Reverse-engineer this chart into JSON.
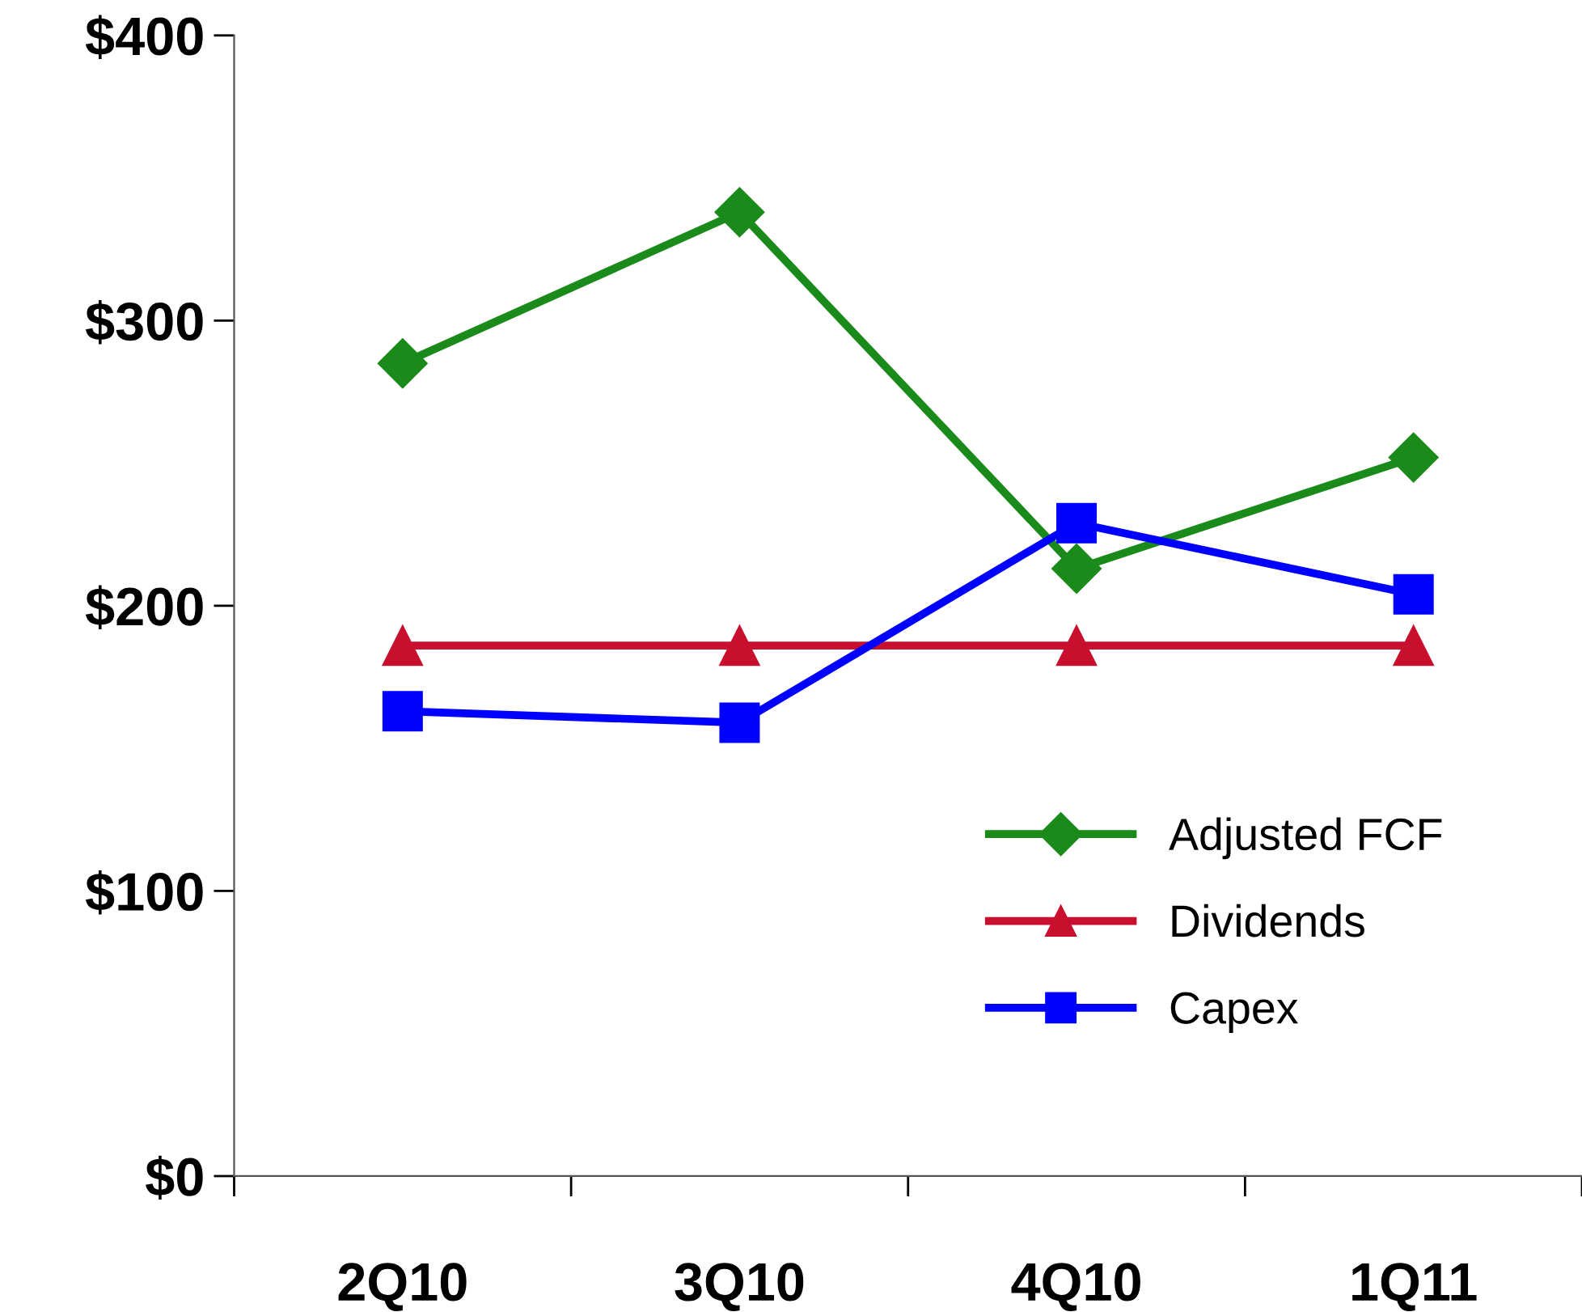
{
  "chart_data": {
    "type": "line",
    "categories": [
      "2Q10",
      "3Q10",
      "4Q10",
      "1Q11"
    ],
    "series": [
      {
        "name": "Adjusted FCF",
        "color": "#1a8a1a",
        "marker": "diamond",
        "values": [
          285,
          338,
          213,
          252
        ]
      },
      {
        "name": "Dividends",
        "color": "#c8102e",
        "marker": "triangle",
        "values": [
          186,
          186,
          186,
          186
        ]
      },
      {
        "name": "Capex",
        "color": "#0000ff",
        "marker": "square",
        "values": [
          163,
          159,
          229,
          204
        ]
      }
    ],
    "ylim": [
      0,
      400
    ],
    "yticks": [
      {
        "value": 0,
        "label": "$0"
      },
      {
        "value": 100,
        "label": "$100"
      },
      {
        "value": 200,
        "label": "$200"
      },
      {
        "value": 300,
        "label": "$300"
      },
      {
        "value": 400,
        "label": "$400"
      }
    ],
    "grid": false,
    "legend": "right",
    "line_style": "solid"
  }
}
